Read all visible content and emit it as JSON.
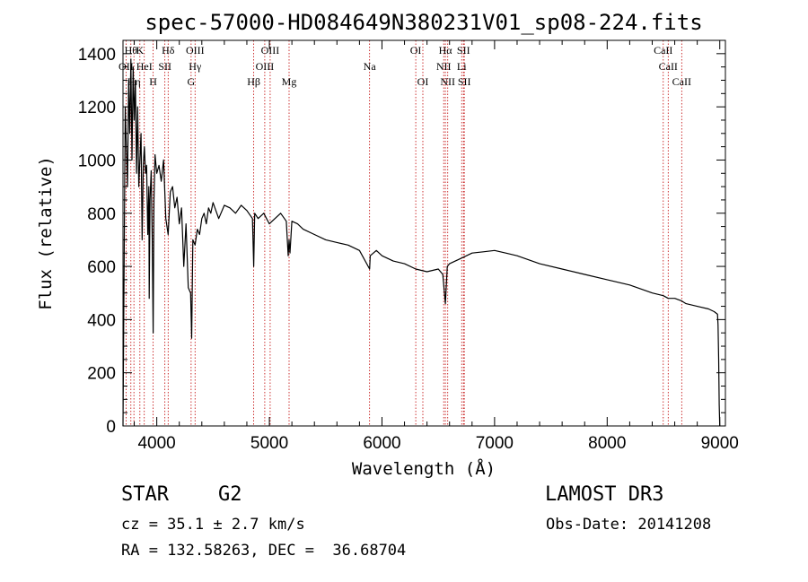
{
  "chart_data": {
    "type": "line",
    "title": "spec-57000-HD084649N380231V01_sp08-224.fits",
    "xlabel": "Wavelength (Å)",
    "ylabel": "Flux (relative)",
    "xlim": [
      3700,
      9050
    ],
    "ylim": [
      0,
      1450
    ],
    "xticks": [
      {
        "v": 4000,
        "label": "4000"
      },
      {
        "v": 5000,
        "label": "5000"
      },
      {
        "v": 6000,
        "label": "6000"
      },
      {
        "v": 7000,
        "label": "7000"
      },
      {
        "v": 8000,
        "label": "8000"
      },
      {
        "v": 9000,
        "label": "9000"
      }
    ],
    "yticks": [
      {
        "v": 0,
        "label": "0"
      },
      {
        "v": 200,
        "label": "200"
      },
      {
        "v": 400,
        "label": "400"
      },
      {
        "v": 600,
        "label": "600"
      },
      {
        "v": 800,
        "label": "800"
      },
      {
        "v": 1000,
        "label": "1000"
      },
      {
        "v": 1200,
        "label": "1200"
      },
      {
        "v": 1400,
        "label": "1400"
      }
    ],
    "grid": false,
    "series": [
      {
        "name": "flux",
        "x": [
          3700,
          3720,
          3740,
          3750,
          3760,
          3770,
          3780,
          3790,
          3800,
          3810,
          3820,
          3830,
          3840,
          3850,
          3860,
          3870,
          3880,
          3890,
          3900,
          3910,
          3920,
          3930,
          3933,
          3940,
          3950,
          3960,
          3968,
          3975,
          3985,
          4000,
          4020,
          4040,
          4060,
          4080,
          4101,
          4120,
          4140,
          4160,
          4180,
          4200,
          4220,
          4240,
          4260,
          4280,
          4300,
          4310,
          4320,
          4340,
          4360,
          4380,
          4400,
          4420,
          4440,
          4460,
          4480,
          4500,
          4550,
          4600,
          4650,
          4700,
          4750,
          4800,
          4850,
          4861,
          4870,
          4900,
          4950,
          5000,
          5050,
          5100,
          5150,
          5167,
          5175,
          5183,
          5200,
          5250,
          5300,
          5400,
          5500,
          5600,
          5700,
          5800,
          5890,
          5896,
          5950,
          6000,
          6100,
          6200,
          6300,
          6400,
          6500,
          6540,
          6563,
          6580,
          6600,
          6700,
          6800,
          6900,
          7000,
          7100,
          7200,
          7400,
          7600,
          7800,
          8000,
          8200,
          8400,
          8498,
          8542,
          8600,
          8662,
          8700,
          8800,
          8900,
          8950,
          8980,
          8985,
          8990,
          8995,
          9000
        ],
        "y": [
          0,
          1200,
          900,
          1300,
          1100,
          1380,
          1000,
          1350,
          1150,
          1300,
          950,
          1200,
          900,
          1000,
          1100,
          700,
          980,
          1050,
          950,
          980,
          720,
          900,
          480,
          850,
          960,
          700,
          350,
          850,
          1020,
          950,
          980,
          920,
          1000,
          780,
          720,
          880,
          900,
          820,
          860,
          760,
          820,
          600,
          760,
          520,
          500,
          330,
          700,
          680,
          740,
          720,
          780,
          800,
          760,
          820,
          800,
          840,
          780,
          830,
          820,
          800,
          830,
          810,
          780,
          600,
          800,
          780,
          800,
          760,
          780,
          800,
          770,
          640,
          700,
          650,
          770,
          760,
          740,
          720,
          700,
          690,
          680,
          660,
          590,
          640,
          660,
          640,
          620,
          610,
          590,
          580,
          590,
          570,
          460,
          600,
          610,
          630,
          650,
          655,
          660,
          650,
          640,
          610,
          590,
          570,
          550,
          530,
          500,
          490,
          480,
          480,
          470,
          460,
          450,
          440,
          430,
          420,
          380,
          250,
          80,
          0
        ]
      }
    ],
    "lines_row1": [
      {
        "v": 3770,
        "label": "Hθ"
      },
      {
        "v": 3850,
        "label": "K"
      },
      {
        "v": 4101,
        "label": "Hδ"
      },
      {
        "v": 4340,
        "label": "OIII"
      },
      {
        "v": 5007,
        "label": "OIII"
      },
      {
        "v": 6300,
        "label": "OI"
      },
      {
        "v": 6563,
        "label": "Hα"
      },
      {
        "v": 6724,
        "label": "SII"
      },
      {
        "v": 8498,
        "label": "CaII"
      }
    ],
    "lines_row2": [
      {
        "v": 3727,
        "label": "OII"
      },
      {
        "v": 3889,
        "label": "HeI"
      },
      {
        "v": 4072,
        "label": "SII"
      },
      {
        "v": 4340,
        "label": "Hγ"
      },
      {
        "v": 4959,
        "label": "OIII"
      },
      {
        "v": 5890,
        "label": "Na"
      },
      {
        "v": 6548,
        "label": "NII"
      },
      {
        "v": 6708,
        "label": "Li"
      },
      {
        "v": 8542,
        "label": "CaII"
      }
    ],
    "lines_row3": [
      {
        "v": 3797,
        "label": "Hη"
      },
      {
        "v": 3968,
        "label": "H"
      },
      {
        "v": 4305,
        "label": "G"
      },
      {
        "v": 4861,
        "label": "Hβ"
      },
      {
        "v": 5175,
        "label": "Mg"
      },
      {
        "v": 6363,
        "label": "OI"
      },
      {
        "v": 6584,
        "label": "NII"
      },
      {
        "v": 6731,
        "label": "SII"
      },
      {
        "v": 8662,
        "label": "CaII"
      }
    ],
    "line_marks": [
      3727,
      3770,
      3797,
      3850,
      3889,
      3968,
      4072,
      4101,
      4305,
      4340,
      4861,
      4959,
      5007,
      5175,
      5890,
      6300,
      6363,
      6548,
      6563,
      6584,
      6708,
      6724,
      6731,
      8498,
      8542,
      8662
    ]
  },
  "info": {
    "object_class": "STAR",
    "subclass": "G2",
    "survey": "LAMOST DR3",
    "redshift": "cz = 35.1 ± 2.7 km/s",
    "obs_date": "Obs-Date: 20141208",
    "coordinates": "RA = 132.58263, DEC =  36.68704"
  }
}
